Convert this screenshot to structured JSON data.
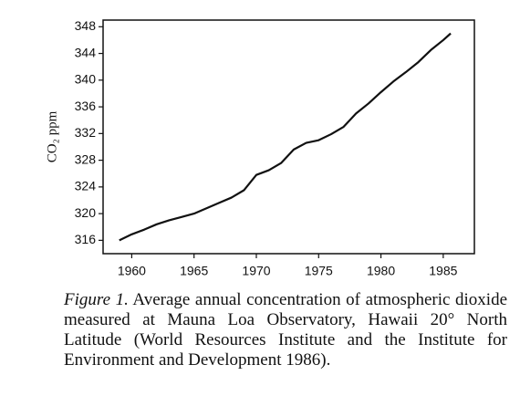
{
  "chart_data": {
    "type": "line",
    "y_label": "CO₂ ppm",
    "x": [
      1959,
      1960,
      1961,
      1962,
      1963,
      1964,
      1965,
      1966,
      1967,
      1968,
      1969,
      1970,
      1971,
      1972,
      1973,
      1974,
      1975,
      1976,
      1977,
      1978,
      1979,
      1980,
      1981,
      1982,
      1983,
      1984,
      1985,
      1985.6
    ],
    "values": [
      316.0,
      316.9,
      317.6,
      318.4,
      319.0,
      319.5,
      320.0,
      320.8,
      321.6,
      322.4,
      323.5,
      325.8,
      326.5,
      327.6,
      329.6,
      330.6,
      331.0,
      331.9,
      333.0,
      335.0,
      336.5,
      338.2,
      339.8,
      341.2,
      342.7,
      344.5,
      346.0,
      347.0
    ],
    "color": "#111111",
    "xlim": [
      1957.7,
      1987.5
    ],
    "xticks": [
      1960,
      1965,
      1970,
      1975,
      1980,
      1985
    ],
    "ylim": [
      314,
      349
    ],
    "yticks": [
      316,
      320,
      324,
      328,
      332,
      336,
      340,
      344,
      348
    ],
    "grid": false
  },
  "caption": {
    "label": "Figure 1.",
    "text": "Average annual concentration of atmospheric dioxide measured at Mauna Loa Observatory, Hawaii 20° North Latitude (World Resources Institute and the Institute for Environment and Development 1986)."
  }
}
